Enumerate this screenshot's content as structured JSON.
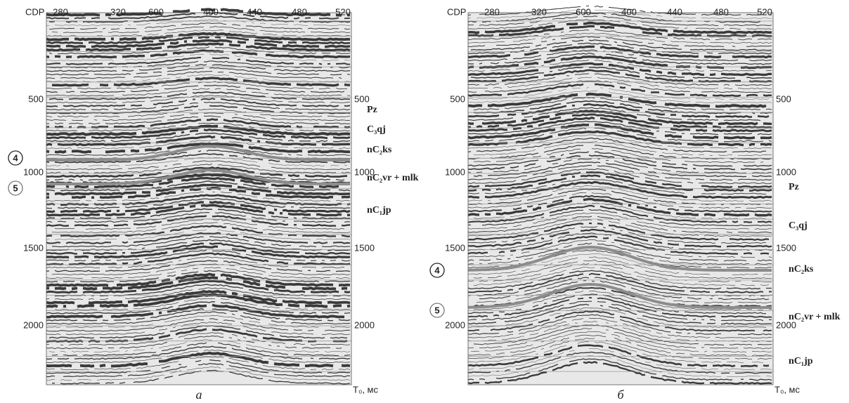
{
  "panels": [
    {
      "cdp_label": "CDP",
      "cdp_ticks": [
        "280",
        "320",
        "600",
        "400",
        "440",
        "480",
        "520"
      ],
      "time_ticks_left": [
        "500",
        "1000",
        "1500",
        "2000"
      ],
      "time_ticks_right": [
        "500",
        "1000",
        "1500",
        "2000"
      ],
      "horizons": [
        "Pz",
        "C₃qj",
        "nC₂ks",
        "nC₂vr + mlk",
        "nC₁jp"
      ],
      "markers": [
        "4",
        "5"
      ],
      "time_axis_label": "T₀, мс",
      "caption": "а"
    },
    {
      "cdp_label": "CDP",
      "cdp_ticks": [
        "280",
        "320",
        "600",
        "400",
        "440",
        "480",
        "520"
      ],
      "time_ticks_left": [
        "500",
        "1000",
        "1500",
        "2000"
      ],
      "time_ticks_right": [
        "500",
        "1000",
        "1500",
        "2000"
      ],
      "horizons": [
        "Pz",
        "C₃qj",
        "nC₂ks",
        "nC₂vr + mlk",
        "nC₁jp"
      ],
      "markers": [
        "4",
        "5"
      ],
      "time_axis_label": "T₀, мс",
      "caption": "б"
    }
  ]
}
